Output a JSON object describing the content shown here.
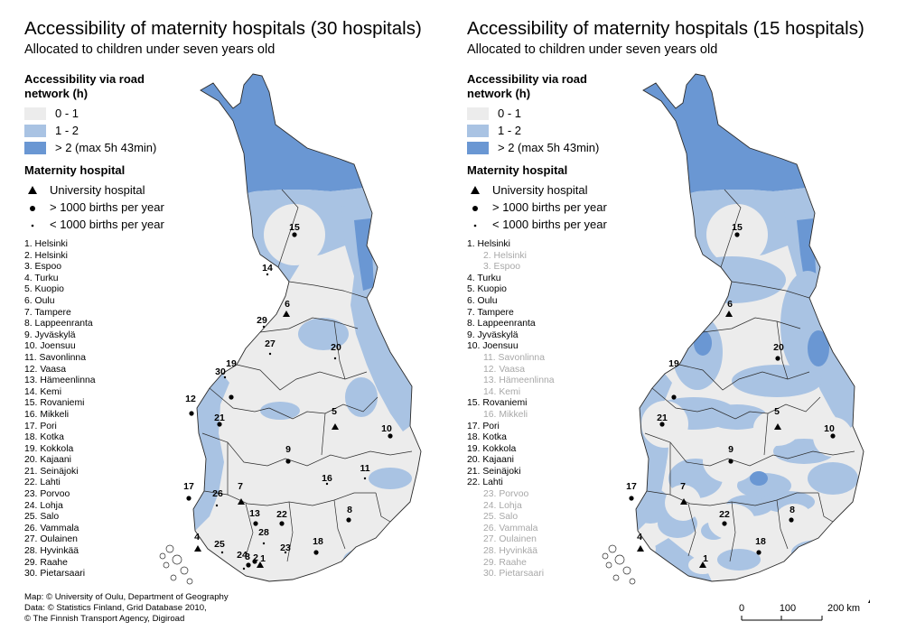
{
  "colors": {
    "class_0_1": "#ececec",
    "class_1_2": "#a9c3e3",
    "class_gt2": "#6a97d3",
    "border": "#2b2b2b",
    "dimmed_text": "#a8a8a8"
  },
  "panels": [
    {
      "title": "Accessibility of maternity hospitals (30 hospitals)",
      "subtitle": "Allocated to children under seven years old",
      "legend": {
        "title": "Accessibility via road network (h)",
        "classes": [
          {
            "label": "0 - 1",
            "color": "#ececec"
          },
          {
            "label": "1 - 2",
            "color": "#a9c3e3"
          },
          {
            "label": "> 2 (max 5h 43min)",
            "color": "#6a97d3"
          }
        ]
      },
      "hospital_legend": {
        "title": "Maternity hospital",
        "symbols": [
          {
            "label": "University hospital",
            "icon": "triangle-icon"
          },
          {
            "label": "> 1000 births per year",
            "icon": "large-dot-icon"
          },
          {
            "label": "< 1000 births per year",
            "icon": "small-dot-icon"
          }
        ]
      },
      "hospitals": [
        {
          "text": "1. Helsinki",
          "dim": false
        },
        {
          "text": "2. Helsinki",
          "dim": false
        },
        {
          "text": "3. Espoo",
          "dim": false
        },
        {
          "text": "4. Turku",
          "dim": false
        },
        {
          "text": "5. Kuopio",
          "dim": false
        },
        {
          "text": "6. Oulu",
          "dim": false
        },
        {
          "text": "7. Tampere",
          "dim": false
        },
        {
          "text": "8. Lappeenranta",
          "dim": false
        },
        {
          "text": "9. Jyväskylä",
          "dim": false
        },
        {
          "text": "10. Joensuu",
          "dim": false
        },
        {
          "text": "11. Savonlinna",
          "dim": false
        },
        {
          "text": "12. Vaasa",
          "dim": false
        },
        {
          "text": "13. Hämeenlinna",
          "dim": false
        },
        {
          "text": "14. Kemi",
          "dim": false
        },
        {
          "text": "15. Rovaniemi",
          "dim": false
        },
        {
          "text": "16. Mikkeli",
          "dim": false
        },
        {
          "text": "17. Pori",
          "dim": false
        },
        {
          "text": "18. Kotka",
          "dim": false
        },
        {
          "text": "19. Kokkola",
          "dim": false
        },
        {
          "text": "20. Kajaani",
          "dim": false
        },
        {
          "text": "21. Seinäjoki",
          "dim": false
        },
        {
          "text": "22. Lahti",
          "dim": false
        },
        {
          "text": "23. Porvoo",
          "dim": false
        },
        {
          "text": "24. Lohja",
          "dim": false
        },
        {
          "text": "25. Salo",
          "dim": false
        },
        {
          "text": "26. Vammala",
          "dim": false
        },
        {
          "text": "27. Oulainen",
          "dim": false
        },
        {
          "text": "28. Hyvinkää",
          "dim": false
        },
        {
          "text": "29. Raahe",
          "dim": false
        },
        {
          "text": "30. Pietarsaari",
          "dim": false
        }
      ],
      "markers": [
        {
          "num": "1",
          "type": "uni"
        },
        {
          "num": "2",
          "type": "large"
        },
        {
          "num": "3",
          "type": "large"
        },
        {
          "num": "4",
          "type": "uni"
        },
        {
          "num": "5",
          "type": "uni"
        },
        {
          "num": "6",
          "type": "uni"
        },
        {
          "num": "7",
          "type": "uni"
        },
        {
          "num": "8",
          "type": "large"
        },
        {
          "num": "9",
          "type": "large"
        },
        {
          "num": "10",
          "type": "large"
        },
        {
          "num": "11",
          "type": "small"
        },
        {
          "num": "12",
          "type": "large"
        },
        {
          "num": "13",
          "type": "large"
        },
        {
          "num": "14",
          "type": "small"
        },
        {
          "num": "15",
          "type": "large"
        },
        {
          "num": "16",
          "type": "small"
        },
        {
          "num": "17",
          "type": "large"
        },
        {
          "num": "18",
          "type": "large"
        },
        {
          "num": "19",
          "type": "large"
        },
        {
          "num": "20",
          "type": "small"
        },
        {
          "num": "21",
          "type": "large"
        },
        {
          "num": "22",
          "type": "large"
        },
        {
          "num": "23",
          "type": "small"
        },
        {
          "num": "24",
          "type": "small"
        },
        {
          "num": "25",
          "type": "small"
        },
        {
          "num": "26",
          "type": "small"
        },
        {
          "num": "27",
          "type": "small"
        },
        {
          "num": "28",
          "type": "small"
        },
        {
          "num": "29",
          "type": "small"
        },
        {
          "num": "30",
          "type": "small"
        }
      ],
      "credits": [
        "Map: © University of Oulu, Department of Geography",
        "Data: © Statistics Finland, Grid Database 2010,",
        "© The Finnish Transport Agency, Digiroad"
      ]
    },
    {
      "title": "Accessibility of maternity hospitals (15 hospitals)",
      "subtitle": "Allocated to children under seven years old",
      "legend": {
        "title": "Accessibility via road network (h)",
        "classes": [
          {
            "label": "0 - 1",
            "color": "#ececec"
          },
          {
            "label": "1 - 2",
            "color": "#a9c3e3"
          },
          {
            "label": "> 2 (max 5h 43min)",
            "color": "#6a97d3"
          }
        ]
      },
      "hospital_legend": {
        "title": "Maternity hospital",
        "symbols": [
          {
            "label": "University hospital",
            "icon": "triangle-icon"
          },
          {
            "label": "> 1000 births per year",
            "icon": "large-dot-icon"
          },
          {
            "label": "< 1000 births per year",
            "icon": "small-dot-icon"
          }
        ]
      },
      "hospitals": [
        {
          "text": "1. Helsinki",
          "dim": false
        },
        {
          "text": "2. Helsinki",
          "dim": true
        },
        {
          "text": "3. Espoo",
          "dim": true
        },
        {
          "text": "4. Turku",
          "dim": false
        },
        {
          "text": "5. Kuopio",
          "dim": false
        },
        {
          "text": "6. Oulu",
          "dim": false
        },
        {
          "text": "7. Tampere",
          "dim": false
        },
        {
          "text": "8. Lappeenranta",
          "dim": false
        },
        {
          "text": "9. Jyväskylä",
          "dim": false
        },
        {
          "text": "10. Joensuu",
          "dim": false
        },
        {
          "text": "11. Savonlinna",
          "dim": true
        },
        {
          "text": "12. Vaasa",
          "dim": true
        },
        {
          "text": "13. Hämeenlinna",
          "dim": true
        },
        {
          "text": "14. Kemi",
          "dim": true
        },
        {
          "text": "15. Rovaniemi",
          "dim": false
        },
        {
          "text": "16. Mikkeli",
          "dim": true
        },
        {
          "text": "17. Pori",
          "dim": false
        },
        {
          "text": "18. Kotka",
          "dim": false
        },
        {
          "text": "19. Kokkola",
          "dim": false
        },
        {
          "text": "20. Kajaani",
          "dim": false
        },
        {
          "text": "21. Seinäjoki",
          "dim": false
        },
        {
          "text": "22. Lahti",
          "dim": false
        },
        {
          "text": "23. Porvoo",
          "dim": true
        },
        {
          "text": "24. Lohja",
          "dim": true
        },
        {
          "text": "25. Salo",
          "dim": true
        },
        {
          "text": "26. Vammala",
          "dim": true
        },
        {
          "text": "27. Oulainen",
          "dim": true
        },
        {
          "text": "28. Hyvinkää",
          "dim": true
        },
        {
          "text": "29. Raahe",
          "dim": true
        },
        {
          "text": "30. Pietarsaari",
          "dim": true
        }
      ],
      "markers": [
        {
          "num": "1",
          "type": "uni"
        },
        {
          "num": "4",
          "type": "uni"
        },
        {
          "num": "5",
          "type": "uni"
        },
        {
          "num": "6",
          "type": "uni"
        },
        {
          "num": "7",
          "type": "uni"
        },
        {
          "num": "8",
          "type": "large"
        },
        {
          "num": "9",
          "type": "large"
        },
        {
          "num": "10",
          "type": "large"
        },
        {
          "num": "15",
          "type": "large"
        },
        {
          "num": "17",
          "type": "large"
        },
        {
          "num": "18",
          "type": "large"
        },
        {
          "num": "19",
          "type": "large"
        },
        {
          "num": "20",
          "type": "large"
        },
        {
          "num": "21",
          "type": "large"
        },
        {
          "num": "22",
          "type": "large"
        }
      ]
    }
  ],
  "scale_bar": {
    "ticks": [
      "0",
      "100",
      "200 km"
    ]
  },
  "north_arrow": "north-arrow-icon"
}
